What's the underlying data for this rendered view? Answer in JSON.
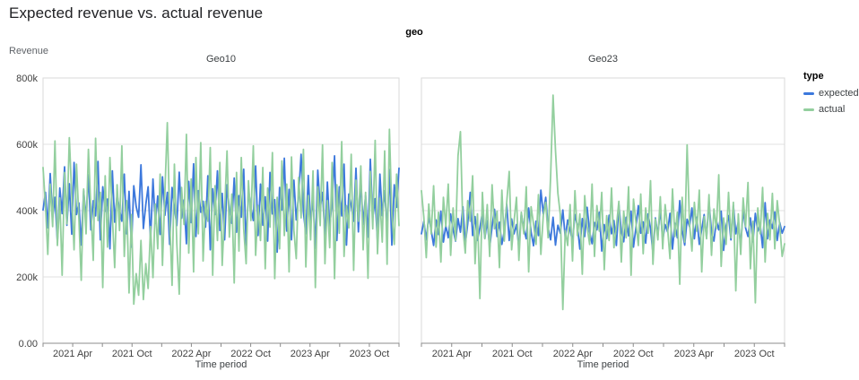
{
  "page": {
    "title": "Expected revenue vs. actual revenue"
  },
  "chart_data": {
    "type": "line",
    "facet_title": "geo",
    "ylabel": "Revenue",
    "xlabel": "Time period",
    "value_unit": "k",
    "legend": {
      "title": "type",
      "position": "right",
      "items": [
        {
          "label": "expected",
          "color": "#3c78dc"
        },
        {
          "label": "actual",
          "color": "#93cf9e"
        }
      ]
    },
    "style": {
      "frame": "#dadada",
      "grid": "#e2e2e2",
      "axis": "#8c8c8c",
      "tick_text": "#424242"
    },
    "y_axis": {
      "min": 0,
      "max": 800,
      "ticks": [
        {
          "value": 0,
          "label": "0.00"
        },
        {
          "value": 200,
          "label": "200k"
        },
        {
          "value": 400,
          "label": "400k"
        },
        {
          "value": 600,
          "label": "600k"
        },
        {
          "value": 800,
          "label": "800k"
        }
      ]
    },
    "x_axis": {
      "range": "2021-01 to 2023-12, weekly",
      "tick_labels": [
        "2021 Apr",
        "2021 Oct",
        "2022 Apr",
        "2022 Oct",
        "2023 Apr",
        "2023 Oct"
      ]
    },
    "panels": [
      {
        "title": "Geo10",
        "series": {
          "expected": [
            402,
            455,
            348,
            512,
            378,
            440,
            305,
            468,
            391,
            532,
            356,
            481,
            329,
            545,
            388,
            423,
            296,
            460,
            375,
            508,
            342,
            430,
            384,
            548,
            312,
            472,
            398,
            435,
            285,
            520,
            365,
            449,
            402,
            368,
            510,
            330,
            458,
            290,
            475,
            412,
            380,
            538,
            346,
            418,
            472,
            310,
            495,
            362,
            444,
            328,
            502,
            386,
            455,
            298,
            470,
            409,
            355,
            516,
            377,
            432,
            300,
            488,
            364,
            541,
            322,
            460,
            395,
            428,
            350,
            505,
            282,
            466,
            388,
            520,
            340,
            452,
            312,
            478,
            405,
            362,
            498,
            335,
            445,
            380,
            525,
            295,
            462,
            410,
            370,
            535,
            325,
            480,
            356,
            442,
            308,
            515,
            390,
            433,
            275,
            470,
            402,
            558,
            338,
            464,
            312,
            492,
            372,
            448,
            570,
            395,
            330,
            506,
            360,
            438,
            286,
            522,
            408,
            455,
            318,
            486,
            352,
            428,
            565,
            310,
            472,
            384,
            540,
            296,
            450,
            415,
            368,
            528,
            336,
            490,
            358,
            446,
            320,
            555,
            378,
            436,
            305,
            510,
            385,
            460,
            340,
            524,
            296,
            478,
            410,
            528
          ],
          "actual": [
            530,
            415,
            268,
            480,
            352,
            610,
            295,
            438,
            205,
            515,
            360,
            620,
            448,
            282,
            540,
            375,
            190,
            465,
            330,
            585,
            410,
            250,
            618,
            370,
            455,
            168,
            505,
            290,
            560,
            385,
            228,
            478,
            340,
            595,
            262,
            430,
            152,
            388,
            118,
            210,
            145,
            310,
            132,
            240,
            165,
            352,
            198,
            420,
            285,
            510,
            235,
            455,
            665,
            380,
            175,
            540,
            300,
            148,
            470,
            358,
            630,
            272,
            495,
            215,
            560,
            330,
            605,
            248,
            428,
            368,
            590,
            205,
            475,
            310,
            545,
            235,
            398,
            580,
            320,
            450,
            182,
            515,
            278,
            560,
            345,
            240,
            490,
            370,
            595,
            265,
            415,
            310,
            530,
            225,
            468,
            350,
            575,
            195,
            440,
            285,
            550,
            325,
            480,
            215,
            562,
            340,
            255,
            500,
            378,
            585,
            230,
            445,
            312,
            520,
            168,
            472,
            355,
            598,
            240,
            430,
            288,
            545,
            195,
            478,
            332,
            608,
            262,
            415,
            348,
            570,
            220,
            492,
            368,
            535,
            282,
            455,
            196,
            518,
            345,
            612,
            270,
            438,
            305,
            580,
            238,
            645,
            390,
            298,
            510,
            355
          ]
        }
      },
      {
        "title": "Geo23",
        "series": {
          "expected": [
            330,
            368,
            312,
            385,
            340,
            295,
            372,
            328,
            398,
            305,
            355,
            318,
            390,
            342,
            308,
            376,
            335,
            412,
            298,
            360,
            455,
            325,
            382,
            310,
            348,
            395,
            316,
            370,
            288,
            352,
            404,
            322,
            365,
            298,
            338,
            420,
            310,
            375,
            330,
            358,
            286,
            392,
            345,
            315,
            408,
            336,
            294,
            368,
            325,
            462,
            390,
            440,
            348,
            312,
            380,
            296,
            356,
            332,
            402,
            318,
            372,
            340,
            308,
            388,
            354,
            284,
            376,
            322,
            410,
            335,
            300,
            364,
            342,
            395,
            278,
            358,
            316,
            386,
            330,
            370,
            295,
            418,
            338,
            306,
            380,
            324,
            398,
            290,
            348,
            415,
            332,
            366,
            302,
            390,
            345,
            272,
            378,
            326,
            405,
            310,
            358,
            336,
            392,
            284,
            362,
            318,
            430,
            340,
            296,
            374,
            352,
            408,
            315,
            380,
            298,
            344,
            388,
            320,
            426,
            336,
            308,
            370,
            342,
            398,
            280,
            354,
            385,
            312,
            416,
            330,
            366,
            294,
            402,
            348,
            322,
            378,
            306,
            392,
            338,
            358,
            288,
            424,
            315,
            372,
            346,
            396,
            310,
            364,
            332,
            352
          ],
          "actual": [
            460,
            380,
            258,
            420,
            330,
            475,
            290,
            395,
            245,
            440,
            352,
            480,
            265,
            408,
            310,
            565,
            638,
            348,
            272,
            430,
            368,
            505,
            240,
            390,
            135,
            455,
            315,
            418,
            262,
            478,
            345,
            398,
            228,
            462,
            308,
            425,
            518,
            282,
            368,
            440,
            250,
            395,
            330,
            472,
            215,
            412,
            360,
            298,
            448,
            268,
            385,
            425,
            318,
            505,
            748,
            582,
            452,
            388,
            102,
            340,
            295,
            418,
            248,
            460,
            325,
            390,
            208,
            445,
            352,
            298,
            480,
            262,
            415,
            338,
            455,
            222,
            385,
            310,
            468,
            288,
            352,
            428,
            245,
            398,
            318,
            472,
            205,
            435,
            365,
            295,
            450,
            270,
            408,
            332,
            490,
            238,
            375,
            312,
            442,
            285,
            418,
            348,
            255,
            465,
            322,
            395,
            178,
            440,
            305,
            598,
            360,
            278,
            425,
            338,
            462,
            215,
            382,
            315,
            448,
            265,
            405,
            345,
            508,
            232,
            378,
            298,
            455,
            318,
            425,
            158,
            390,
            268,
            438,
            352,
            485,
            225,
            368,
            122,
            408,
            330,
            470,
            245,
            392,
            312,
            452,
            285,
            430,
            355,
            262,
            300
          ]
        }
      }
    ]
  }
}
